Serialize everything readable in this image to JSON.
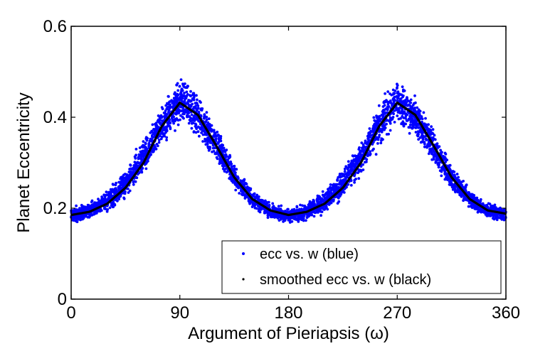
{
  "chart_data": {
    "type": "scatter",
    "title": "",
    "xlabel": "Argument of Pieriapsis (ω)",
    "ylabel": "Planet Eccentricity",
    "xlim": [
      0,
      360
    ],
    "ylim": [
      0,
      0.6
    ],
    "xticks": [
      0,
      90,
      180,
      270,
      360
    ],
    "xtick_labels": [
      "0",
      "90",
      "180",
      "270",
      "360"
    ],
    "yticks": [
      0,
      0.2,
      0.4,
      0.6
    ],
    "ytick_labels": [
      "0",
      "0.2",
      "0.4",
      "0.6"
    ],
    "grid": false,
    "legend_position": "bottom-right",
    "series": [
      {
        "name": "ecc vs. w (blue)",
        "kind": "scatter",
        "color": "#0000ff",
        "x": [
          0,
          15,
          30,
          45,
          60,
          75,
          90,
          105,
          120,
          135,
          150,
          165,
          180,
          195,
          210,
          225,
          240,
          255,
          270,
          285,
          300,
          315,
          330,
          345,
          360
        ],
        "y_upper": [
          0.205,
          0.215,
          0.245,
          0.29,
          0.36,
          0.44,
          0.5,
          0.465,
          0.385,
          0.305,
          0.245,
          0.215,
          0.2,
          0.215,
          0.245,
          0.29,
          0.36,
          0.44,
          0.5,
          0.46,
          0.38,
          0.3,
          0.245,
          0.215,
          0.205
        ],
        "y_lower": [
          0.165,
          0.17,
          0.185,
          0.215,
          0.265,
          0.325,
          0.37,
          0.345,
          0.29,
          0.235,
          0.195,
          0.172,
          0.165,
          0.17,
          0.185,
          0.215,
          0.265,
          0.325,
          0.37,
          0.345,
          0.29,
          0.235,
          0.195,
          0.172,
          0.165
        ]
      },
      {
        "name": "smoothed ecc vs. w (black)",
        "kind": "line",
        "color": "#000000",
        "x": [
          0,
          15,
          30,
          45,
          60,
          75,
          90,
          105,
          120,
          135,
          150,
          165,
          180,
          195,
          210,
          225,
          240,
          255,
          270,
          285,
          300,
          315,
          330,
          345,
          360
        ],
        "y": [
          0.185,
          0.192,
          0.21,
          0.245,
          0.3,
          0.38,
          0.432,
          0.405,
          0.338,
          0.268,
          0.22,
          0.195,
          0.185,
          0.192,
          0.21,
          0.245,
          0.3,
          0.38,
          0.432,
          0.405,
          0.338,
          0.268,
          0.22,
          0.195,
          0.188
        ]
      }
    ]
  }
}
